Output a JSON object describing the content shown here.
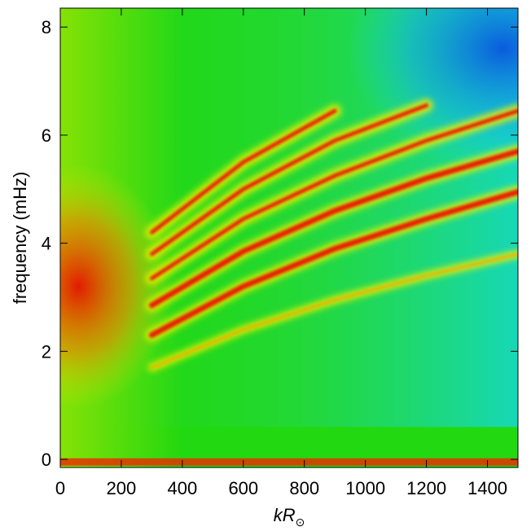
{
  "chart_data": {
    "type": "heatmap",
    "title": "",
    "xlabel_main": "kR",
    "xlabel_sub": "⊙",
    "ylabel": "frequency (mHz)",
    "xlim": [
      0,
      1500
    ],
    "ylim": [
      -0.15,
      8.35
    ],
    "x_ticks": [
      0,
      200,
      400,
      600,
      800,
      1000,
      1200,
      1400
    ],
    "y_ticks": [
      0,
      2,
      4,
      6,
      8
    ],
    "colormap": [
      "#0a55e0",
      "#12d8f0",
      "#22d810",
      "#f0f000",
      "#e81000"
    ],
    "background_level": 0.45,
    "ridges": [
      {
        "n": 1,
        "f_at_k": [
          [
            300,
            2.3
          ],
          [
            600,
            3.2
          ],
          [
            900,
            3.9
          ],
          [
            1200,
            4.45
          ],
          [
            1500,
            4.95
          ]
        ]
      },
      {
        "n": 2,
        "f_at_k": [
          [
            300,
            2.85
          ],
          [
            600,
            3.85
          ],
          [
            900,
            4.6
          ],
          [
            1200,
            5.2
          ],
          [
            1500,
            5.7
          ]
        ]
      },
      {
        "n": 3,
        "f_at_k": [
          [
            300,
            3.35
          ],
          [
            600,
            4.45
          ],
          [
            900,
            5.25
          ],
          [
            1200,
            5.9
          ],
          [
            1500,
            6.45
          ]
        ]
      },
      {
        "n": 4,
        "f_at_k": [
          [
            300,
            3.8
          ],
          [
            600,
            5.0
          ],
          [
            900,
            5.9
          ],
          [
            1200,
            6.55
          ]
        ]
      },
      {
        "n": 5,
        "f_at_k": [
          [
            300,
            4.2
          ],
          [
            600,
            5.5
          ],
          [
            900,
            6.45
          ]
        ]
      },
      {
        "f_mode": true,
        "f_at_k": [
          [
            300,
            1.7
          ],
          [
            600,
            2.4
          ],
          [
            900,
            2.95
          ],
          [
            1200,
            3.4
          ],
          [
            1500,
            3.8
          ]
        ]
      }
    ],
    "low_freq_band_mHz": 0.0
  }
}
